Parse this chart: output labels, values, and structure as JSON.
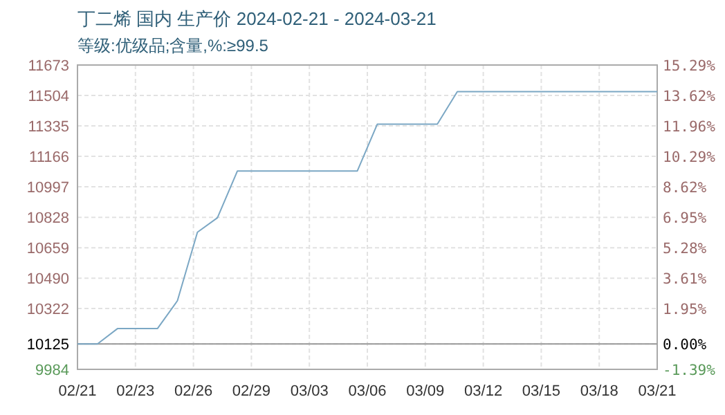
{
  "chart_data": {
    "type": "line",
    "title": "丁二烯 国内 生产价 2024-02-21 - 2024-03-21",
    "subtitle": "等级:优级品;含量,%:≥99.5",
    "x": [
      "2024-02-21",
      "2024-02-22",
      "2024-02-23",
      "2024-02-25",
      "2024-02-26",
      "2024-02-27",
      "2024-02-28",
      "2024-02-29",
      "2024-03-06",
      "2024-03-07",
      "2024-03-10",
      "2024-03-11",
      "2024-03-21"
    ],
    "series": [
      {
        "color": "#7ba7c4",
        "values": [
          10125,
          10125,
          10210,
          10210,
          10365,
          10745,
          10825,
          11085,
          11085,
          11345,
          11345,
          11525,
          11525
        ]
      }
    ],
    "xlim": [
      "2024-02-21",
      "2024-03-21"
    ],
    "xticks": [
      {
        "value": "2024-02-21",
        "label": "02/21"
      },
      {
        "value": "2024-02-23T21:36",
        "label": "02/23"
      },
      {
        "value": "2024-02-26T19:12",
        "label": "02/26"
      },
      {
        "value": "2024-02-29T16:48",
        "label": "02/29"
      },
      {
        "value": "2024-03-03T14:24",
        "label": "03/03"
      },
      {
        "value": "2024-03-06T12:00",
        "label": "03/06"
      },
      {
        "value": "2024-03-09T09:36",
        "label": "03/09"
      },
      {
        "value": "2024-03-12T07:12",
        "label": "03/12"
      },
      {
        "value": "2024-03-15T04:48",
        "label": "03/15"
      },
      {
        "value": "2024-03-18T02:24",
        "label": "03/18"
      },
      {
        "value": "2024-03-21",
        "label": "03/21"
      }
    ],
    "ylim": [
      9984,
      11673
    ],
    "yticks": [
      9984,
      10125,
      10322,
      10490,
      10659,
      10828,
      10997,
      11166,
      11335,
      11504,
      11673
    ],
    "y2lim": [
      -1.39,
      15.29
    ],
    "y2ticks": [
      {
        "value": -1.39,
        "label": "-1.39%"
      },
      {
        "value": 0,
        "label": "0.00%"
      },
      {
        "value": 1.95,
        "label": "1.95%"
      },
      {
        "value": 3.61,
        "label": "3.61%"
      },
      {
        "value": 5.28,
        "label": "5.28%"
      },
      {
        "value": 6.95,
        "label": "6.95%"
      },
      {
        "value": 8.62,
        "label": "8.62%"
      },
      {
        "value": 10.29,
        "label": "10.29%"
      },
      {
        "value": 11.96,
        "label": "11.96%"
      },
      {
        "value": 13.62,
        "label": "13.62%"
      },
      {
        "value": 15.29,
        "label": "15.29%"
      }
    ],
    "ref_lines": [
      {
        "axis": "y",
        "value": 10125,
        "color": "#999999"
      }
    ],
    "grid": true,
    "marker": "none",
    "line_style": "solid"
  }
}
